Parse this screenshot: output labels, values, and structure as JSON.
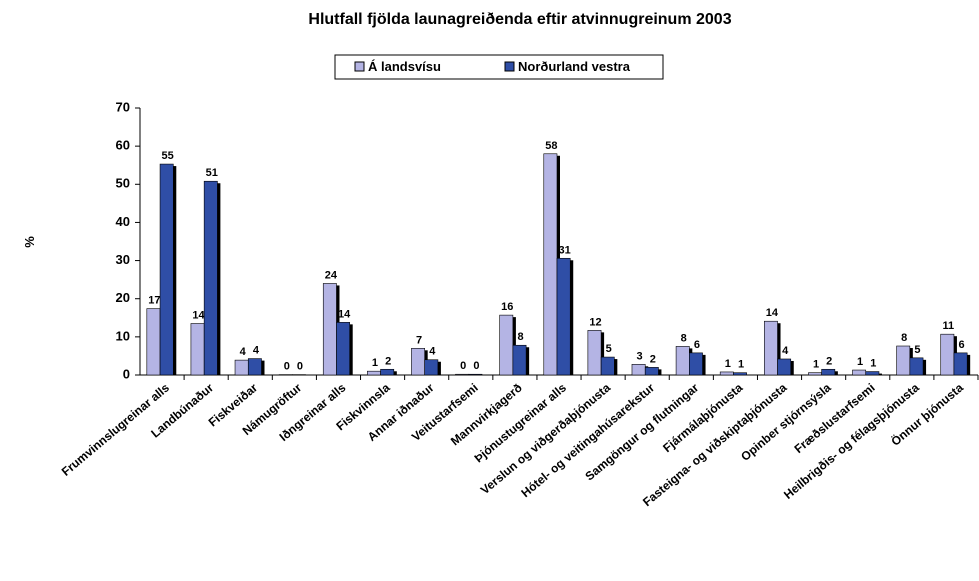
{
  "chart_data": {
    "type": "bar",
    "title": "Hlutfall fjölda launagreiðenda eftir atvinnugreinum 2003",
    "y_label": "%",
    "categories": [
      "Frumvinnslugreinar alls",
      "Landbúnaður",
      "Fiskveiðar",
      "Námugröftur",
      "Iðngreinar alls",
      "Fiskvinnsla",
      "Annar iðnaður",
      "Veitustarfsemi",
      "Mannvirkjagerð",
      "Þjónustugreinar alls",
      "Verslun og viðgerðaþjónusta",
      "Hótel- og veitingahúsarekstur",
      "Samgöngur og flutningar",
      "Fjármálaþjónusta",
      "Fasteigna- og viðskiptaþjónusta",
      "Opinber stjórnsýsla",
      "Fræðslustarfsemi",
      "Heilbrigðis- og félagsþjónusta",
      "Önnur þjónusta"
    ],
    "series": [
      {
        "name": "Á landsvísu",
        "color": "#b4b4e4",
        "values": [
          17.4,
          13.5,
          3.9,
          0.1,
          24,
          1,
          7,
          0.2,
          15.7,
          58,
          11.7,
          2.8,
          7.5,
          0.8,
          14.1,
          0.6,
          1.3,
          7.6,
          10.7
        ],
        "value_labels": [
          "17",
          "14",
          "4",
          "0",
          "24",
          "1",
          "7",
          "0",
          "16",
          "58",
          "12",
          "3",
          "8",
          "1",
          "14",
          "1",
          "1",
          "8",
          "11"
        ]
      },
      {
        "name": "Norðurland vestra",
        "color": "#2f4ea6",
        "values": [
          55.3,
          50.8,
          4.3,
          0.1,
          13.8,
          1.5,
          4,
          0.2,
          7.8,
          30.6,
          4.7,
          2.0,
          5.8,
          0.6,
          4.2,
          1.5,
          0.9,
          4.5,
          5.8
        ],
        "value_labels": [
          "55",
          "51",
          "4",
          "0",
          "14",
          "2",
          "4",
          "0",
          "8",
          "31",
          "5",
          "2",
          "6",
          "1",
          "4",
          "2",
          "1",
          "5",
          "6"
        ]
      }
    ],
    "ylim": [
      0,
      70
    ],
    "yticks": [
      0,
      10,
      20,
      30,
      40,
      50,
      60,
      70
    ],
    "legend": "top"
  }
}
